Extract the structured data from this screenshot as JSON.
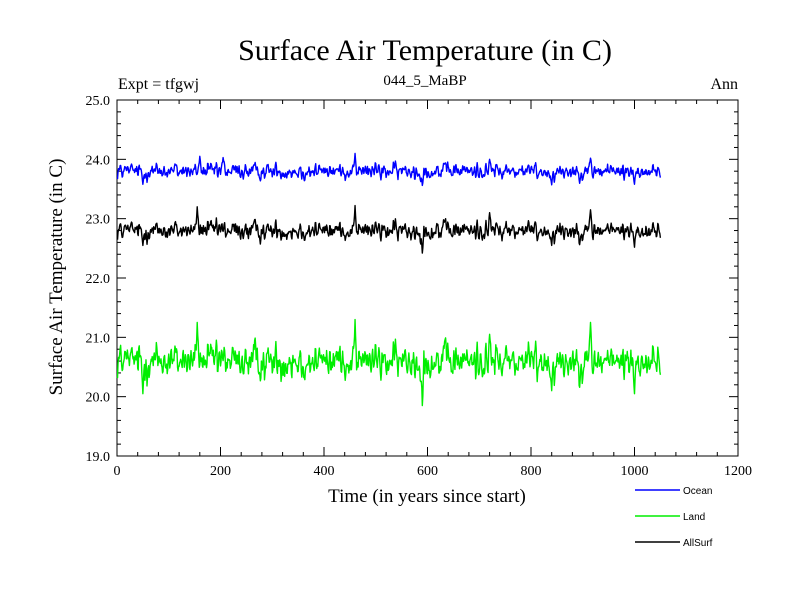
{
  "chart_data": {
    "type": "line",
    "title": "Surface Air Temperature (in C)",
    "subtitle": "044_5_MaBP",
    "experiment_label": "Expt = tfgwj",
    "period_label": "Ann",
    "xlabel": "Time (in years since start)",
    "ylabel": "Surface Air Temperature (in C)",
    "xlim": [
      0,
      1200
    ],
    "ylim": [
      19.0,
      25.0
    ],
    "x_ticks": [
      "0",
      "200",
      "400",
      "600",
      "800",
      "1000",
      "1200"
    ],
    "y_ticks": [
      "19.0",
      "20.0",
      "21.0",
      "22.0",
      "23.0",
      "24.0",
      "25.0"
    ],
    "x_range_data": [
      1,
      1050
    ],
    "grid": false,
    "legend_position": "bottom-right",
    "series": [
      {
        "name": "Ocean",
        "color": "#0000ff",
        "mean": 23.8,
        "amplitude": 0.1,
        "peaks": [
          [
            160,
            24.05
          ],
          [
            205,
            24.03
          ],
          [
            460,
            24.1
          ],
          [
            720,
            24.0
          ],
          [
            915,
            24.02
          ]
        ],
        "troughs": [
          [
            50,
            23.58
          ],
          [
            590,
            23.56
          ],
          [
            840,
            23.57
          ],
          [
            1000,
            23.58
          ]
        ]
      },
      {
        "name": "Land",
        "color": "#00ee00",
        "mean": 20.6,
        "amplitude": 0.22,
        "peaks": [
          [
            155,
            21.25
          ],
          [
            460,
            21.3
          ],
          [
            720,
            21.05
          ],
          [
            915,
            21.25
          ]
        ],
        "troughs": [
          [
            50,
            20.05
          ],
          [
            590,
            19.85
          ],
          [
            840,
            20.1
          ],
          [
            1000,
            20.05
          ]
        ]
      },
      {
        "name": "AllSurf",
        "color": "#000000",
        "mean": 22.8,
        "amplitude": 0.12,
        "peaks": [
          [
            155,
            23.2
          ],
          [
            460,
            23.22
          ],
          [
            720,
            23.1
          ],
          [
            915,
            23.15
          ]
        ],
        "troughs": [
          [
            50,
            22.55
          ],
          [
            590,
            22.42
          ],
          [
            840,
            22.55
          ],
          [
            1000,
            22.52
          ]
        ]
      }
    ]
  }
}
